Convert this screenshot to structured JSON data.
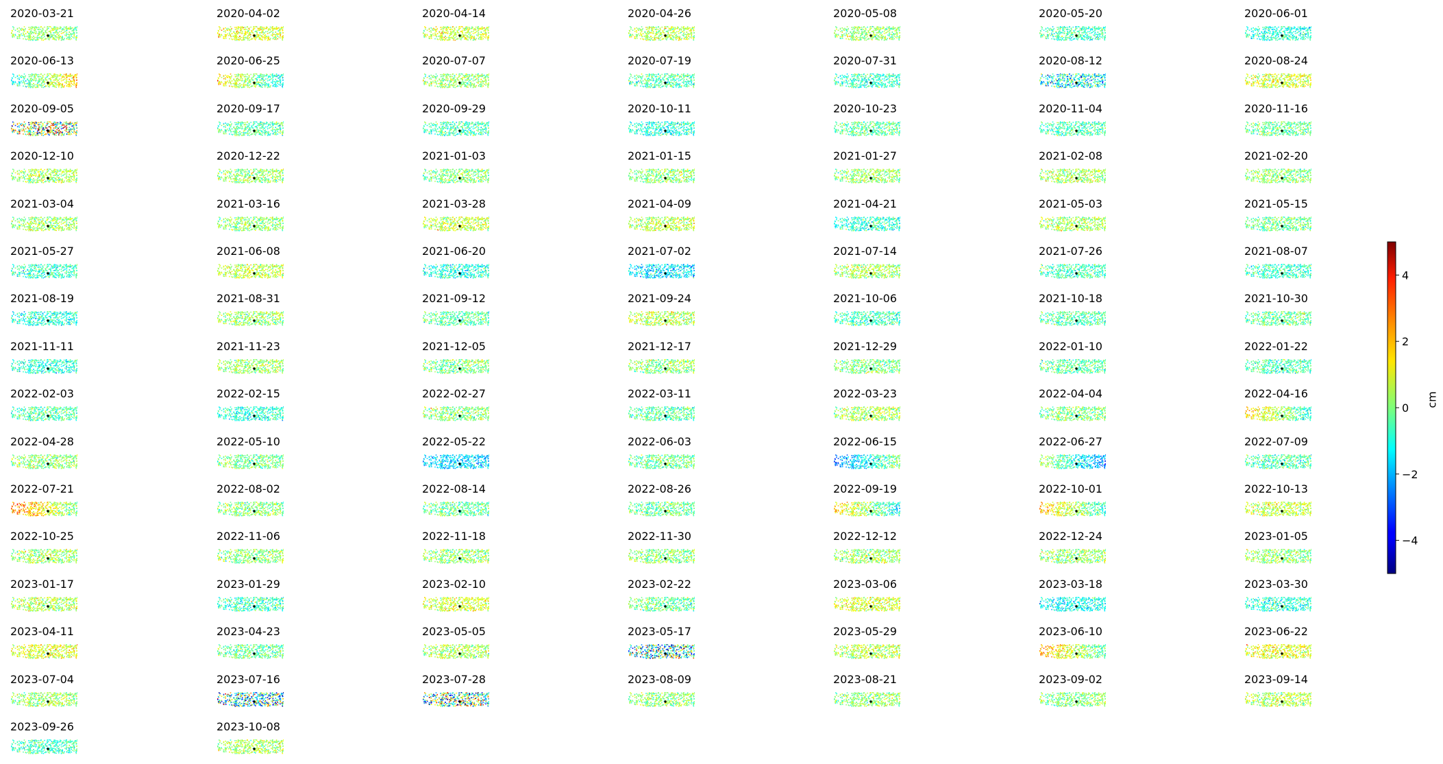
{
  "chart_data": {
    "type": "heatmap",
    "layout": "small-multiples-grid",
    "columns": 7,
    "colormap": "jet",
    "color_range": [
      -5,
      5
    ],
    "reference_point_color": "#000000",
    "panels": [
      {
        "date": "2020-03-21",
        "mean_cm": 0.2,
        "pattern": "uniform"
      },
      {
        "date": "2020-04-02",
        "mean_cm": 0.9,
        "pattern": "uniform"
      },
      {
        "date": "2020-04-14",
        "mean_cm": 0.7,
        "pattern": "uniform"
      },
      {
        "date": "2020-04-26",
        "mean_cm": 0.5,
        "pattern": "uniform"
      },
      {
        "date": "2020-05-08",
        "mean_cm": 0.1,
        "pattern": "uniform"
      },
      {
        "date": "2020-05-20",
        "mean_cm": -0.6,
        "pattern": "uniform"
      },
      {
        "date": "2020-06-01",
        "mean_cm": -0.9,
        "pattern": "uniform"
      },
      {
        "date": "2020-06-13",
        "mean_cm": 0.3,
        "pattern": "west-low-east-high"
      },
      {
        "date": "2020-06-25",
        "mean_cm": 0.1,
        "pattern": "west-high-east-low"
      },
      {
        "date": "2020-07-07",
        "mean_cm": 0.2,
        "pattern": "uniform"
      },
      {
        "date": "2020-07-19",
        "mean_cm": -0.5,
        "pattern": "uniform"
      },
      {
        "date": "2020-07-31",
        "mean_cm": -0.7,
        "pattern": "uniform"
      },
      {
        "date": "2020-08-12",
        "mean_cm": -1.2,
        "pattern": "mixed"
      },
      {
        "date": "2020-08-24",
        "mean_cm": 0.8,
        "pattern": "uniform"
      },
      {
        "date": "2020-09-05",
        "mean_cm": 0.5,
        "pattern": "mixed-strong"
      },
      {
        "date": "2020-09-17",
        "mean_cm": -0.4,
        "pattern": "uniform"
      },
      {
        "date": "2020-09-29",
        "mean_cm": -0.6,
        "pattern": "uniform"
      },
      {
        "date": "2020-10-11",
        "mean_cm": -0.9,
        "pattern": "uniform"
      },
      {
        "date": "2020-10-23",
        "mean_cm": -0.3,
        "pattern": "uniform"
      },
      {
        "date": "2020-11-04",
        "mean_cm": -0.5,
        "pattern": "uniform"
      },
      {
        "date": "2020-11-16",
        "mean_cm": -0.2,
        "pattern": "uniform"
      },
      {
        "date": "2020-12-10",
        "mean_cm": 0.3,
        "pattern": "uniform"
      },
      {
        "date": "2020-12-22",
        "mean_cm": 0.2,
        "pattern": "uniform"
      },
      {
        "date": "2021-01-03",
        "mean_cm": 0.0,
        "pattern": "uniform"
      },
      {
        "date": "2021-01-15",
        "mean_cm": 0.1,
        "pattern": "uniform"
      },
      {
        "date": "2021-01-27",
        "mean_cm": 0.2,
        "pattern": "uniform"
      },
      {
        "date": "2021-02-08",
        "mean_cm": 0.4,
        "pattern": "uniform"
      },
      {
        "date": "2021-02-20",
        "mean_cm": 0.1,
        "pattern": "uniform"
      },
      {
        "date": "2021-03-04",
        "mean_cm": 0.3,
        "pattern": "uniform"
      },
      {
        "date": "2021-03-16",
        "mean_cm": 0.2,
        "pattern": "uniform"
      },
      {
        "date": "2021-03-28",
        "mean_cm": 0.7,
        "pattern": "uniform"
      },
      {
        "date": "2021-04-09",
        "mean_cm": 0.6,
        "pattern": "uniform"
      },
      {
        "date": "2021-04-21",
        "mean_cm": -0.8,
        "pattern": "uniform"
      },
      {
        "date": "2021-05-03",
        "mean_cm": 0.4,
        "pattern": "uniform"
      },
      {
        "date": "2021-05-15",
        "mean_cm": -0.2,
        "pattern": "uniform"
      },
      {
        "date": "2021-05-27",
        "mean_cm": -0.6,
        "pattern": "uniform"
      },
      {
        "date": "2021-06-08",
        "mean_cm": 0.6,
        "pattern": "uniform"
      },
      {
        "date": "2021-06-20",
        "mean_cm": -1.0,
        "pattern": "uniform"
      },
      {
        "date": "2021-07-02",
        "mean_cm": -1.5,
        "pattern": "uniform"
      },
      {
        "date": "2021-07-14",
        "mean_cm": 0.4,
        "pattern": "uniform"
      },
      {
        "date": "2021-07-26",
        "mean_cm": -0.6,
        "pattern": "uniform"
      },
      {
        "date": "2021-08-07",
        "mean_cm": -0.7,
        "pattern": "uniform"
      },
      {
        "date": "2021-08-19",
        "mean_cm": -0.9,
        "pattern": "uniform"
      },
      {
        "date": "2021-08-31",
        "mean_cm": 0.3,
        "pattern": "uniform"
      },
      {
        "date": "2021-09-12",
        "mean_cm": -0.3,
        "pattern": "uniform"
      },
      {
        "date": "2021-09-24",
        "mean_cm": 0.5,
        "pattern": "uniform"
      },
      {
        "date": "2021-10-06",
        "mean_cm": -0.6,
        "pattern": "uniform"
      },
      {
        "date": "2021-10-18",
        "mean_cm": -0.4,
        "pattern": "uniform"
      },
      {
        "date": "2021-10-30",
        "mean_cm": -0.3,
        "pattern": "uniform"
      },
      {
        "date": "2021-11-11",
        "mean_cm": -0.8,
        "pattern": "uniform"
      },
      {
        "date": "2021-11-23",
        "mean_cm": 0.3,
        "pattern": "uniform"
      },
      {
        "date": "2021-12-05",
        "mean_cm": 0.0,
        "pattern": "uniform"
      },
      {
        "date": "2021-12-17",
        "mean_cm": 0.1,
        "pattern": "uniform"
      },
      {
        "date": "2021-12-29",
        "mean_cm": 0.0,
        "pattern": "uniform"
      },
      {
        "date": "2022-01-10",
        "mean_cm": -0.3,
        "pattern": "uniform"
      },
      {
        "date": "2022-01-22",
        "mean_cm": -0.5,
        "pattern": "uniform"
      },
      {
        "date": "2022-02-03",
        "mean_cm": -0.4,
        "pattern": "uniform"
      },
      {
        "date": "2022-02-15",
        "mean_cm": -0.8,
        "pattern": "uniform"
      },
      {
        "date": "2022-02-27",
        "mean_cm": 0.1,
        "pattern": "uniform"
      },
      {
        "date": "2022-03-11",
        "mean_cm": -0.4,
        "pattern": "uniform"
      },
      {
        "date": "2022-03-23",
        "mean_cm": 0.5,
        "pattern": "uniform"
      },
      {
        "date": "2022-04-04",
        "mean_cm": 0.0,
        "pattern": "uniform"
      },
      {
        "date": "2022-04-16",
        "mean_cm": 0.4,
        "pattern": "west-high-east-low"
      },
      {
        "date": "2022-04-28",
        "mean_cm": 0.2,
        "pattern": "uniform"
      },
      {
        "date": "2022-05-10",
        "mean_cm": -0.1,
        "pattern": "uniform"
      },
      {
        "date": "2022-05-22",
        "mean_cm": -1.6,
        "pattern": "uniform"
      },
      {
        "date": "2022-06-03",
        "mean_cm": -0.2,
        "pattern": "uniform"
      },
      {
        "date": "2022-06-15",
        "mean_cm": -1.2,
        "pattern": "west-low-east-high"
      },
      {
        "date": "2022-06-27",
        "mean_cm": -0.9,
        "pattern": "west-high-east-low"
      },
      {
        "date": "2022-07-09",
        "mean_cm": -0.4,
        "pattern": "uniform"
      },
      {
        "date": "2022-07-21",
        "mean_cm": 1.2,
        "pattern": "west-high-east-low"
      },
      {
        "date": "2022-08-02",
        "mean_cm": 0.1,
        "pattern": "uniform"
      },
      {
        "date": "2022-08-14",
        "mean_cm": -0.3,
        "pattern": "uniform"
      },
      {
        "date": "2022-08-26",
        "mean_cm": -0.2,
        "pattern": "uniform"
      },
      {
        "date": "2022-09-19",
        "mean_cm": 0.2,
        "pattern": "west-high-east-low"
      },
      {
        "date": "2022-10-01",
        "mean_cm": 0.6,
        "pattern": "west-high-east-low"
      },
      {
        "date": "2022-10-13",
        "mean_cm": 0.7,
        "pattern": "uniform"
      },
      {
        "date": "2022-10-25",
        "mean_cm": 0.3,
        "pattern": "uniform"
      },
      {
        "date": "2022-11-06",
        "mean_cm": 0.2,
        "pattern": "uniform"
      },
      {
        "date": "2022-11-18",
        "mean_cm": 0.2,
        "pattern": "uniform"
      },
      {
        "date": "2022-11-30",
        "mean_cm": 0.1,
        "pattern": "uniform"
      },
      {
        "date": "2022-12-12",
        "mean_cm": 0.3,
        "pattern": "uniform"
      },
      {
        "date": "2022-12-24",
        "mean_cm": 0.2,
        "pattern": "uniform"
      },
      {
        "date": "2023-01-05",
        "mean_cm": 0.2,
        "pattern": "uniform"
      },
      {
        "date": "2023-01-17",
        "mean_cm": 0.5,
        "pattern": "uniform"
      },
      {
        "date": "2023-01-29",
        "mean_cm": -0.6,
        "pattern": "uniform"
      },
      {
        "date": "2023-02-10",
        "mean_cm": 0.8,
        "pattern": "uniform"
      },
      {
        "date": "2023-02-22",
        "mean_cm": -0.2,
        "pattern": "uniform"
      },
      {
        "date": "2023-03-06",
        "mean_cm": 0.9,
        "pattern": "uniform"
      },
      {
        "date": "2023-03-18",
        "mean_cm": -1.2,
        "pattern": "uniform"
      },
      {
        "date": "2023-03-30",
        "mean_cm": -0.8,
        "pattern": "uniform"
      },
      {
        "date": "2023-04-11",
        "mean_cm": 1.0,
        "pattern": "uniform"
      },
      {
        "date": "2023-04-23",
        "mean_cm": -0.2,
        "pattern": "uniform"
      },
      {
        "date": "2023-05-05",
        "mean_cm": 0.4,
        "pattern": "uniform"
      },
      {
        "date": "2023-05-17",
        "mean_cm": -0.5,
        "pattern": "mixed-strong"
      },
      {
        "date": "2023-05-29",
        "mean_cm": 0.6,
        "pattern": "uniform"
      },
      {
        "date": "2023-06-10",
        "mean_cm": 0.8,
        "pattern": "west-high-east-low"
      },
      {
        "date": "2023-06-22",
        "mean_cm": 1.0,
        "pattern": "uniform"
      },
      {
        "date": "2023-07-04",
        "mean_cm": 0.3,
        "pattern": "uniform"
      },
      {
        "date": "2023-07-16",
        "mean_cm": -0.8,
        "pattern": "mixed-strong"
      },
      {
        "date": "2023-07-28",
        "mean_cm": -0.6,
        "pattern": "mixed-strong"
      },
      {
        "date": "2023-08-09",
        "mean_cm": 0.2,
        "pattern": "uniform"
      },
      {
        "date": "2023-08-21",
        "mean_cm": 0.2,
        "pattern": "uniform"
      },
      {
        "date": "2023-09-02",
        "mean_cm": 0.1,
        "pattern": "uniform"
      },
      {
        "date": "2023-09-14",
        "mean_cm": 0.5,
        "pattern": "uniform"
      },
      {
        "date": "2023-09-26",
        "mean_cm": -0.6,
        "pattern": "uniform"
      },
      {
        "date": "2023-10-08",
        "mean_cm": 0.4,
        "pattern": "uniform"
      }
    ],
    "colorbar": {
      "ticks": [
        -4,
        -2,
        0,
        2,
        4
      ],
      "tick_labels": [
        "−4",
        "−2",
        "0",
        "2",
        "4"
      ],
      "label": "cm"
    }
  }
}
